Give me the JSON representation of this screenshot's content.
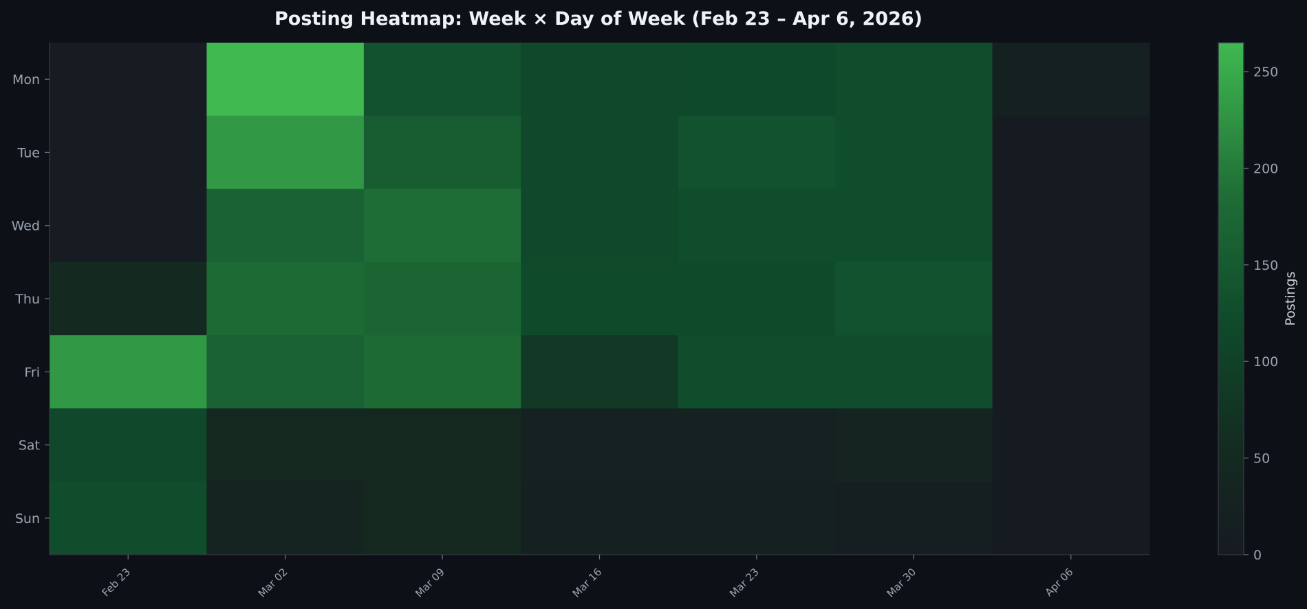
{
  "chart_data": {
    "type": "heatmap",
    "title": "Posting Heatmap: Week × Day of Week (Feb 23 – Apr 6, 2026)",
    "x_categories": [
      "Feb 23",
      "Mar 02",
      "Mar 09",
      "Mar 16",
      "Mar 23",
      "Mar 30",
      "Apr 06"
    ],
    "y_categories": [
      "Mon",
      "Tue",
      "Wed",
      "Thu",
      "Fri",
      "Sat",
      "Sun"
    ],
    "values": [
      [
        2,
        265,
        135,
        115,
        118,
        125,
        22
      ],
      [
        2,
        230,
        155,
        115,
        135,
        125,
        0
      ],
      [
        2,
        165,
        185,
        115,
        125,
        125,
        0
      ],
      [
        50,
        180,
        170,
        120,
        120,
        135,
        0
      ],
      [
        230,
        165,
        180,
        85,
        125,
        125,
        0
      ],
      [
        115,
        45,
        45,
        25,
        25,
        30,
        0
      ],
      [
        125,
        30,
        45,
        20,
        20,
        15,
        0
      ]
    ],
    "colorbar": {
      "label": "Postings",
      "range": [
        0,
        265
      ],
      "ticks": [
        0,
        50,
        100,
        150,
        200,
        250
      ],
      "color_low": "#161b22",
      "color_high": "#3fb950"
    },
    "grid": false
  }
}
